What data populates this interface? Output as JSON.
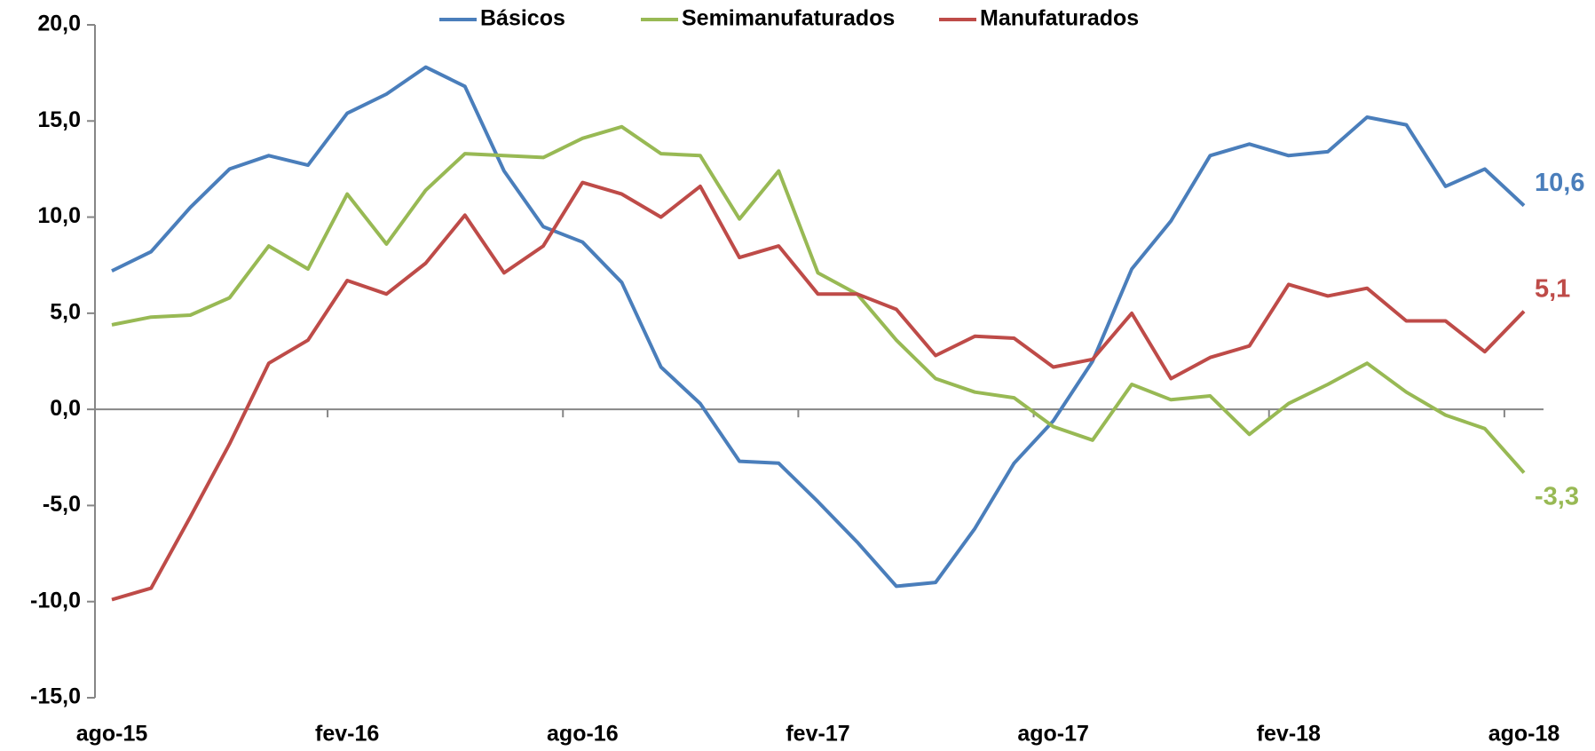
{
  "chart_data": {
    "type": "line",
    "categories": [
      "ago-15",
      null,
      null,
      null,
      null,
      null,
      "fev-16",
      null,
      null,
      null,
      null,
      null,
      "ago-16",
      null,
      null,
      null,
      null,
      null,
      "fev-17",
      null,
      null,
      null,
      null,
      null,
      "ago-17",
      null,
      null,
      null,
      null,
      null,
      "fev-18",
      null,
      null,
      null,
      null,
      null,
      "ago-18"
    ],
    "series": [
      {
        "name": "Básicos",
        "color": "#4a7ebb",
        "values": [
          7.2,
          8.2,
          10.5,
          12.5,
          13.2,
          12.7,
          15.4,
          16.4,
          17.8,
          16.8,
          12.4,
          9.5,
          8.7,
          6.6,
          2.2,
          0.3,
          -2.7,
          -2.8,
          -4.8,
          -6.9,
          -9.2,
          -9.0,
          -6.2,
          -2.8,
          -0.6,
          2.5,
          7.3,
          9.8,
          13.2,
          13.8,
          13.2,
          13.4,
          15.2,
          14.8,
          11.6,
          12.5,
          10.6
        ],
        "value_labels": [
          null,
          null,
          null,
          null,
          null,
          null,
          null,
          null,
          null,
          null,
          null,
          null,
          null,
          null,
          null,
          null,
          null,
          null,
          null,
          null,
          null,
          null,
          null,
          null,
          null,
          null,
          null,
          null,
          null,
          null,
          null,
          null,
          null,
          null,
          null,
          null,
          "10,6"
        ]
      },
      {
        "name": "Semimanufaturados",
        "color": "#98b954",
        "values": [
          4.4,
          4.8,
          4.9,
          5.8,
          8.5,
          7.3,
          11.2,
          8.6,
          11.4,
          13.3,
          13.2,
          13.1,
          14.1,
          14.7,
          13.3,
          13.2,
          9.9,
          12.4,
          7.1,
          6.0,
          3.6,
          1.6,
          0.9,
          0.6,
          -0.9,
          -1.6,
          1.3,
          0.5,
          0.7,
          -1.3,
          0.3,
          1.3,
          2.4,
          0.9,
          -0.3,
          -1.0,
          -3.3
        ],
        "value_labels": [
          null,
          null,
          null,
          null,
          null,
          null,
          null,
          null,
          null,
          null,
          null,
          null,
          null,
          null,
          null,
          null,
          null,
          null,
          null,
          null,
          null,
          null,
          null,
          null,
          null,
          null,
          null,
          null,
          null,
          null,
          null,
          null,
          null,
          null,
          null,
          null,
          "-3,3"
        ]
      },
      {
        "name": "Manufaturados",
        "color": "#be4b48",
        "values": [
          -9.9,
          -9.3,
          -5.6,
          -1.8,
          2.4,
          3.6,
          6.7,
          6.0,
          7.6,
          10.1,
          7.1,
          8.5,
          11.8,
          11.2,
          10.0,
          11.6,
          7.9,
          8.5,
          6.0,
          6.0,
          5.2,
          2.8,
          3.8,
          3.7,
          2.2,
          2.6,
          5.0,
          1.6,
          2.7,
          3.3,
          6.5,
          5.9,
          6.3,
          4.6,
          4.6,
          3.0,
          5.1
        ],
        "value_labels": [
          null,
          null,
          null,
          null,
          null,
          null,
          null,
          null,
          null,
          null,
          null,
          null,
          null,
          null,
          null,
          null,
          null,
          null,
          null,
          null,
          null,
          null,
          null,
          null,
          null,
          null,
          null,
          null,
          null,
          null,
          null,
          null,
          null,
          null,
          null,
          null,
          "5,1"
        ]
      }
    ],
    "ylim": [
      -15,
      20
    ],
    "yticks": [
      {
        "value": -15,
        "label": "-15,0"
      },
      {
        "value": -10,
        "label": "-10,0"
      },
      {
        "value": -5,
        "label": "-5,0"
      },
      {
        "value": 0,
        "label": "0,0"
      },
      {
        "value": 5,
        "label": "5,0"
      },
      {
        "value": 10,
        "label": "10,0"
      },
      {
        "value": 15,
        "label": "15,0"
      },
      {
        "value": 20,
        "label": "20,0"
      }
    ],
    "legend": "top",
    "grid": false
  }
}
